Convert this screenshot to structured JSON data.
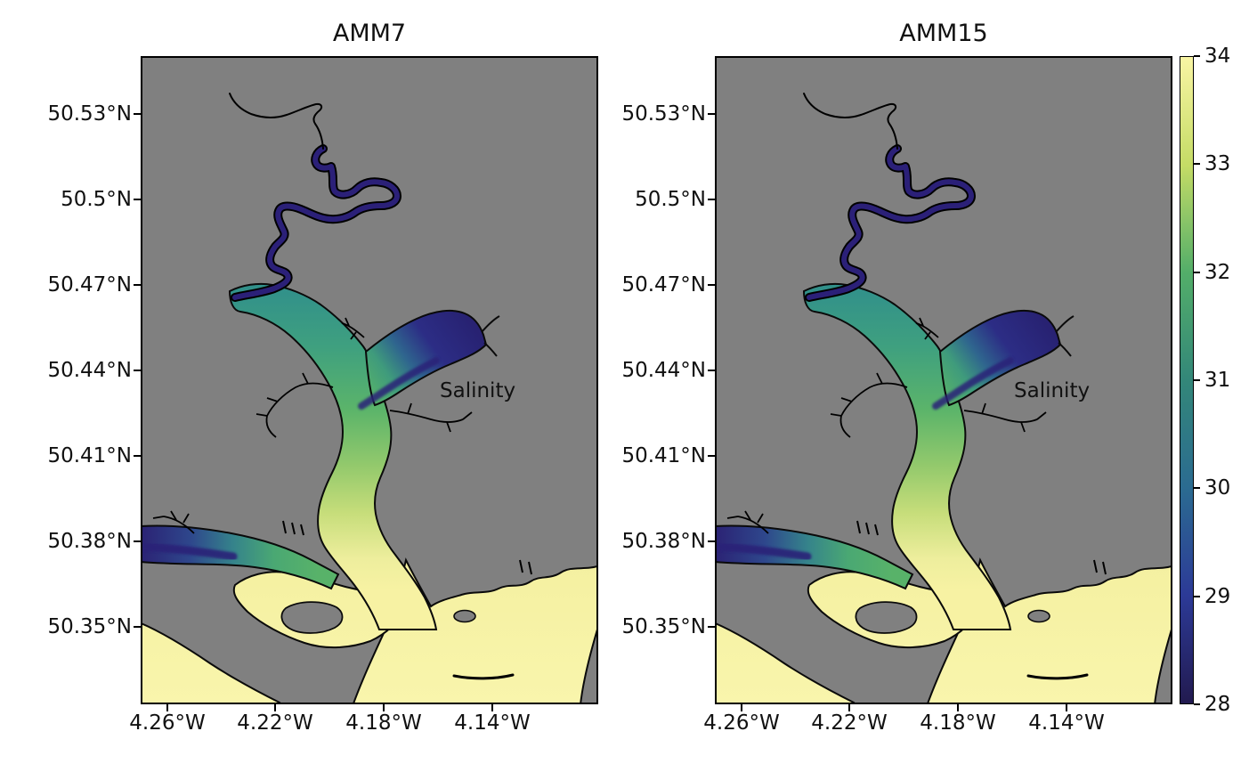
{
  "figure": {
    "panels": [
      {
        "title": "AMM7",
        "annotation": "Salinity"
      },
      {
        "title": "AMM15",
        "annotation": "Salinity"
      }
    ],
    "y_tick_labels": [
      "50.53°N",
      "50.5°N",
      "50.47°N",
      "50.44°N",
      "50.41°N",
      "50.38°N",
      "50.35°N"
    ],
    "x_tick_labels": [
      "4.26°W",
      "4.22°W",
      "4.18°W",
      "4.14°W"
    ],
    "colorbar_tick_labels": [
      "34",
      "33",
      "32",
      "31",
      "30",
      "29",
      "28"
    ]
  },
  "chart_data": {
    "type": "heatmap",
    "panels": [
      {
        "title": "AMM7",
        "variable": "Salinity"
      },
      {
        "title": "AMM15",
        "variable": "Salinity"
      }
    ],
    "x_axis": {
      "tick_labels": [
        "4.26°W",
        "4.22°W",
        "4.18°W",
        "4.14°W"
      ],
      "approx_range": [
        "4.27°W",
        "4.10°W"
      ]
    },
    "y_axis": {
      "tick_labels": [
        "50.53°N",
        "50.5°N",
        "50.47°N",
        "50.44°N",
        "50.41°N",
        "50.38°N",
        "50.35°N"
      ],
      "approx_range": [
        "50.32°N",
        "50.55°N"
      ]
    },
    "colorbar": {
      "min": 28,
      "max": 34,
      "tick_values": [
        34,
        33,
        32,
        31,
        30,
        29,
        28
      ],
      "colormap_stops": {
        "28": "#221a4f",
        "29": "#2c3a97",
        "30": "#2b6b91",
        "31": "#338779",
        "32": "#53ae69",
        "33": "#c5dc66",
        "34": "#f9f5a4"
      },
      "description": "haline-like colormap: dark blue (fresh) to pale yellow (saline)"
    },
    "map_region": "Tamar Estuary and Plymouth Sound, UK",
    "land_color": "#808080",
    "salinity_features": [
      {
        "feature": "upper winding river channel (north)",
        "approx_salinity": 28
      },
      {
        "feature": "mid-estuary bend",
        "approx_salinity": 30.5
      },
      {
        "feature": "northeast branch upper reach",
        "approx_salinity": 28.5
      },
      {
        "feature": "confluence and main channel",
        "approx_salinity": 32
      },
      {
        "feature": "west branch outer reach (dark core)",
        "approx_salinity": 28.5
      },
      {
        "feature": "lower estuary",
        "approx_salinity": 33
      },
      {
        "feature": "sound / open coastal water (south)",
        "approx_salinity": 34
      }
    ]
  }
}
